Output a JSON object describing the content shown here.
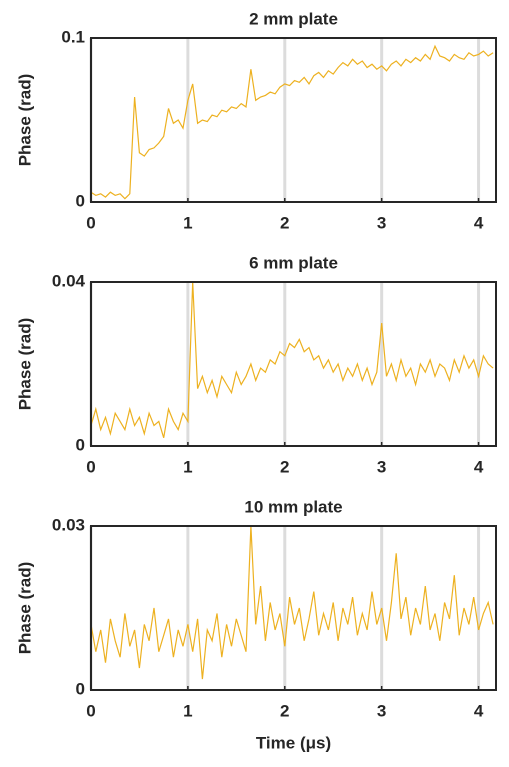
{
  "chart_data": [
    {
      "type": "line",
      "title": "2 mm plate",
      "y_label": "Phase (rad)",
      "color": "#edb120",
      "x": [
        0,
        0.05,
        0.1,
        0.15,
        0.2,
        0.25,
        0.3,
        0.35,
        0.4,
        0.45,
        0.5,
        0.55,
        0.6,
        0.65,
        0.7,
        0.75,
        0.8,
        0.85,
        0.9,
        0.95,
        1,
        1.05,
        1.1,
        1.15,
        1.2,
        1.25,
        1.3,
        1.35,
        1.4,
        1.45,
        1.5,
        1.55,
        1.6,
        1.65,
        1.7,
        1.75,
        1.8,
        1.85,
        1.9,
        1.95,
        2,
        2.05,
        2.1,
        2.15,
        2.2,
        2.25,
        2.3,
        2.35,
        2.4,
        2.45,
        2.5,
        2.55,
        2.6,
        2.65,
        2.7,
        2.75,
        2.8,
        2.85,
        2.9,
        2.95,
        3,
        3.05,
        3.1,
        3.15,
        3.2,
        3.25,
        3.3,
        3.35,
        3.4,
        3.45,
        3.5,
        3.55,
        3.6,
        3.65,
        3.7,
        3.75,
        3.8,
        3.85,
        3.9,
        3.95,
        4,
        4.05,
        4.1,
        4.15
      ],
      "values": [
        0.006,
        0.004,
        0.005,
        0.003,
        0.006,
        0.004,
        0.005,
        0.002,
        0.005,
        0.064,
        0.03,
        0.028,
        0.032,
        0.033,
        0.036,
        0.04,
        0.057,
        0.048,
        0.05,
        0.045,
        0.062,
        0.072,
        0.048,
        0.05,
        0.049,
        0.053,
        0.052,
        0.056,
        0.055,
        0.058,
        0.057,
        0.06,
        0.058,
        0.081,
        0.062,
        0.064,
        0.065,
        0.067,
        0.066,
        0.07,
        0.072,
        0.071,
        0.074,
        0.073,
        0.076,
        0.072,
        0.077,
        0.079,
        0.076,
        0.08,
        0.078,
        0.082,
        0.085,
        0.083,
        0.087,
        0.084,
        0.086,
        0.082,
        0.084,
        0.081,
        0.083,
        0.08,
        0.084,
        0.086,
        0.083,
        0.087,
        0.085,
        0.088,
        0.086,
        0.09,
        0.087,
        0.095,
        0.089,
        0.088,
        0.086,
        0.09,
        0.088,
        0.087,
        0.091,
        0.089,
        0.09,
        0.092,
        0.089,
        0.091
      ],
      "xlim": [
        0,
        4.18
      ],
      "xticks": [
        0,
        1,
        2,
        3,
        4
      ],
      "ylim": [
        0,
        0.1
      ],
      "yticks": [
        0,
        0.1
      ],
      "grid": "x"
    },
    {
      "type": "line",
      "title": "6 mm plate",
      "y_label": "Phase (rad)",
      "color": "#edb120",
      "x": [
        0,
        0.05,
        0.1,
        0.15,
        0.2,
        0.25,
        0.3,
        0.35,
        0.4,
        0.45,
        0.5,
        0.55,
        0.6,
        0.65,
        0.7,
        0.75,
        0.8,
        0.85,
        0.9,
        0.95,
        1,
        1.05,
        1.1,
        1.15,
        1.2,
        1.25,
        1.3,
        1.35,
        1.4,
        1.45,
        1.5,
        1.55,
        1.6,
        1.65,
        1.7,
        1.75,
        1.8,
        1.85,
        1.9,
        1.95,
        2,
        2.05,
        2.1,
        2.15,
        2.2,
        2.25,
        2.3,
        2.35,
        2.4,
        2.45,
        2.5,
        2.55,
        2.6,
        2.65,
        2.7,
        2.75,
        2.8,
        2.85,
        2.9,
        2.95,
        3,
        3.05,
        3.1,
        3.15,
        3.2,
        3.25,
        3.3,
        3.35,
        3.4,
        3.45,
        3.5,
        3.55,
        3.6,
        3.65,
        3.7,
        3.75,
        3.8,
        3.85,
        3.9,
        3.95,
        4,
        4.05,
        4.1,
        4.15
      ],
      "values": [
        0.005,
        0.009,
        0.004,
        0.007,
        0.003,
        0.008,
        0.006,
        0.004,
        0.009,
        0.005,
        0.007,
        0.003,
        0.008,
        0.005,
        0.006,
        0.002,
        0.009,
        0.006,
        0.004,
        0.008,
        0.006,
        0.04,
        0.014,
        0.017,
        0.013,
        0.016,
        0.012,
        0.017,
        0.015,
        0.013,
        0.018,
        0.015,
        0.017,
        0.02,
        0.016,
        0.019,
        0.018,
        0.021,
        0.02,
        0.023,
        0.022,
        0.025,
        0.024,
        0.026,
        0.023,
        0.024,
        0.021,
        0.022,
        0.019,
        0.021,
        0.018,
        0.02,
        0.016,
        0.019,
        0.017,
        0.02,
        0.016,
        0.019,
        0.015,
        0.018,
        0.03,
        0.017,
        0.02,
        0.016,
        0.021,
        0.017,
        0.019,
        0.015,
        0.02,
        0.018,
        0.021,
        0.017,
        0.02,
        0.019,
        0.016,
        0.021,
        0.018,
        0.022,
        0.019,
        0.021,
        0.017,
        0.022,
        0.02,
        0.019
      ],
      "xlim": [
        0,
        4.18
      ],
      "xticks": [
        0,
        1,
        2,
        3,
        4
      ],
      "ylim": [
        0,
        0.04
      ],
      "yticks": [
        0,
        0.04
      ],
      "grid": "x"
    },
    {
      "type": "line",
      "title": "10 mm plate",
      "y_label": "Phase (rad)",
      "x_label": "Time (μs)",
      "color": "#edb120",
      "x": [
        0,
        0.05,
        0.1,
        0.15,
        0.2,
        0.25,
        0.3,
        0.35,
        0.4,
        0.45,
        0.5,
        0.55,
        0.6,
        0.65,
        0.7,
        0.75,
        0.8,
        0.85,
        0.9,
        0.95,
        1,
        1.05,
        1.1,
        1.15,
        1.2,
        1.25,
        1.3,
        1.35,
        1.4,
        1.45,
        1.5,
        1.55,
        1.6,
        1.65,
        1.7,
        1.75,
        1.8,
        1.85,
        1.9,
        1.95,
        2,
        2.05,
        2.1,
        2.15,
        2.2,
        2.25,
        2.3,
        2.35,
        2.4,
        2.45,
        2.5,
        2.55,
        2.6,
        2.65,
        2.7,
        2.75,
        2.8,
        2.85,
        2.9,
        2.95,
        3,
        3.05,
        3.1,
        3.15,
        3.2,
        3.25,
        3.3,
        3.35,
        3.4,
        3.45,
        3.5,
        3.55,
        3.6,
        3.65,
        3.7,
        3.75,
        3.8,
        3.85,
        3.9,
        3.95,
        4,
        4.05,
        4.1,
        4.15
      ],
      "values": [
        0.012,
        0.007,
        0.011,
        0.005,
        0.013,
        0.009,
        0.006,
        0.014,
        0.008,
        0.011,
        0.004,
        0.012,
        0.009,
        0.015,
        0.007,
        0.01,
        0.013,
        0.006,
        0.011,
        0.008,
        0.012,
        0.007,
        0.013,
        0.002,
        0.011,
        0.009,
        0.014,
        0.006,
        0.012,
        0.008,
        0.013,
        0.01,
        0.007,
        0.03,
        0.012,
        0.019,
        0.009,
        0.016,
        0.011,
        0.014,
        0.008,
        0.017,
        0.012,
        0.015,
        0.009,
        0.013,
        0.018,
        0.01,
        0.014,
        0.011,
        0.016,
        0.009,
        0.015,
        0.012,
        0.017,
        0.01,
        0.014,
        0.011,
        0.018,
        0.012,
        0.015,
        0.009,
        0.016,
        0.025,
        0.013,
        0.017,
        0.01,
        0.015,
        0.012,
        0.019,
        0.011,
        0.014,
        0.009,
        0.016,
        0.013,
        0.021,
        0.01,
        0.015,
        0.012,
        0.017,
        0.011,
        0.014,
        0.016,
        0.012
      ],
      "xlim": [
        0,
        4.18
      ],
      "xticks": [
        0,
        1,
        2,
        3,
        4
      ],
      "ylim": [
        0,
        0.03
      ],
      "yticks": [
        0,
        0.03
      ],
      "grid": "x"
    }
  ]
}
